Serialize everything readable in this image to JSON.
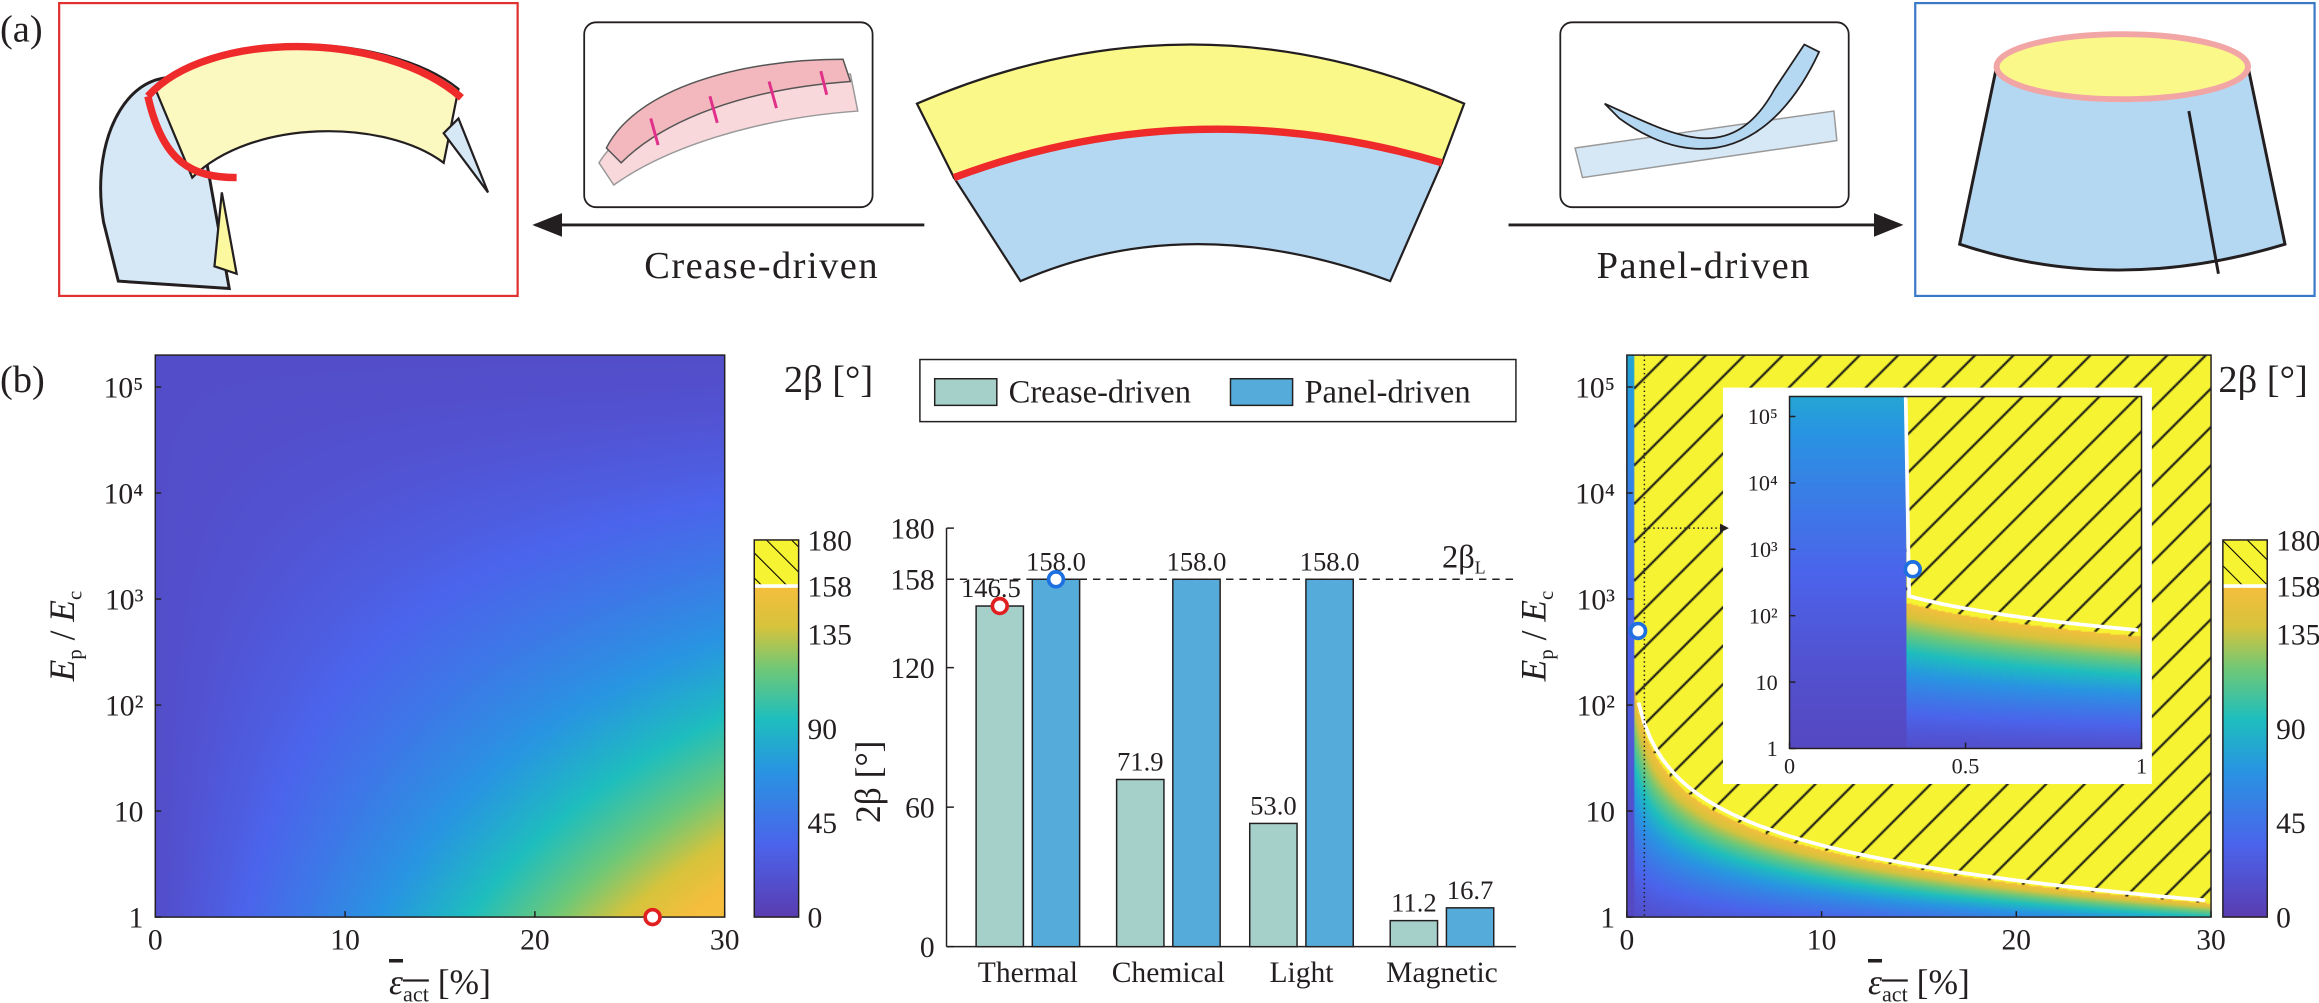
{
  "panel_a": {
    "label": "(a)",
    "left_arrow_label": "Crease-driven",
    "right_arrow_label": "Panel-driven",
    "colors": {
      "yellow": "#fbf88a",
      "blue": "#b5d8f2",
      "red": "#ee2a2a",
      "pink": "#f2b8bd",
      "frame_red": "#e03030",
      "frame_blue": "#3a78c8"
    }
  },
  "panel_b": {
    "label": "(b)"
  },
  "chart_data": [
    {
      "type": "heatmap",
      "xlabel": "ε_act [%]",
      "xlabel_main": "ε",
      "xlabel_sub": "act",
      "xlabel_unit": " [%]",
      "ylabel": "E_p / E_c",
      "ylabel_parts": {
        "a": "E",
        "a_sub": "p",
        "sep": " / ",
        "b": "E",
        "b_sub": "c"
      },
      "xlim": [
        0,
        30
      ],
      "ylim": [
        1,
        200000
      ],
      "yscale": "log",
      "xticks": [
        "0",
        "10",
        "20",
        "30"
      ],
      "xtick_values": [
        0,
        10,
        20,
        30
      ],
      "yticks": [
        "1",
        "10",
        "10²",
        "10³",
        "10⁴",
        "10⁵"
      ],
      "ytick_values": [
        1,
        10,
        100,
        1000,
        10000,
        100000
      ],
      "colorbar": {
        "label": "2β [°]",
        "ticks": [
          "0",
          "45",
          "90",
          "135",
          "158",
          "180"
        ],
        "tick_values": [
          0,
          45,
          90,
          135,
          158,
          180
        ],
        "hatched_above": 158,
        "range": [
          0,
          180
        ]
      },
      "marker": {
        "x": 26.2,
        "y": 1,
        "color": "#e02020"
      },
      "trend": "2β increases toward high ε_act and low E_p/E_c; max ≈146.5° at bottom right"
    },
    {
      "type": "bar",
      "categories": [
        "Thermal",
        "Chemical",
        "Light",
        "Magnetic"
      ],
      "series": [
        {
          "name": "Crease-driven",
          "values": [
            146.5,
            71.9,
            53.0,
            11.2
          ],
          "labels": [
            "146.5",
            "71.9",
            "53.0",
            "11.2"
          ],
          "color": "#a5cfc9"
        },
        {
          "name": "Panel-driven",
          "values": [
            158.0,
            158.0,
            158.0,
            16.7
          ],
          "labels": [
            "158.0",
            "158.0",
            "158.0",
            "16.7"
          ],
          "color": "#55acdb"
        }
      ],
      "ylabel": "2β [°]",
      "ylim": [
        0,
        180
      ],
      "yticks": [
        "0",
        "60",
        "120",
        "158",
        "180"
      ],
      "ytick_values": [
        0,
        60,
        120,
        158,
        180
      ],
      "reference_line": {
        "value": 158,
        "label": "2β",
        "label_sub": "L",
        "style": "dashed"
      },
      "markers": [
        {
          "series": 0,
          "category": 0,
          "color": "#e02020"
        },
        {
          "series": 1,
          "category": 0,
          "color": "#1e6fe0"
        }
      ],
      "legend": "top"
    },
    {
      "type": "heatmap",
      "xlabel": "ε_act [%]",
      "xlim": [
        0,
        30
      ],
      "ylim": [
        1,
        200000
      ],
      "yscale": "log",
      "xticks": [
        "0",
        "10",
        "20",
        "30"
      ],
      "xtick_values": [
        0,
        10,
        20,
        30
      ],
      "yticks": [
        "1",
        "10",
        "10²",
        "10³",
        "10⁴",
        "10⁵"
      ],
      "ytick_values": [
        1,
        10,
        100,
        1000,
        10000,
        100000
      ],
      "hatched_region": "2β ≥ 158 (limit reached)",
      "colorbar": {
        "label": "2β [°]",
        "ticks": [
          "0",
          "45",
          "90",
          "135",
          "158",
          "180"
        ],
        "tick_values": [
          0,
          45,
          90,
          135,
          158,
          180
        ]
      },
      "marker": {
        "x": 0.35,
        "y": 500,
        "color": "#1e6fe0"
      },
      "inset": {
        "xlim": [
          0,
          1
        ],
        "xticks": [
          "0",
          "0.5",
          "1"
        ],
        "xtick_values": [
          0,
          0.5,
          1
        ],
        "yticks": [
          "1",
          "10",
          "10²",
          "10³",
          "10⁴",
          "10⁵"
        ],
        "ytick_values": [
          1,
          10,
          100,
          1000,
          10000,
          100000
        ]
      }
    }
  ]
}
